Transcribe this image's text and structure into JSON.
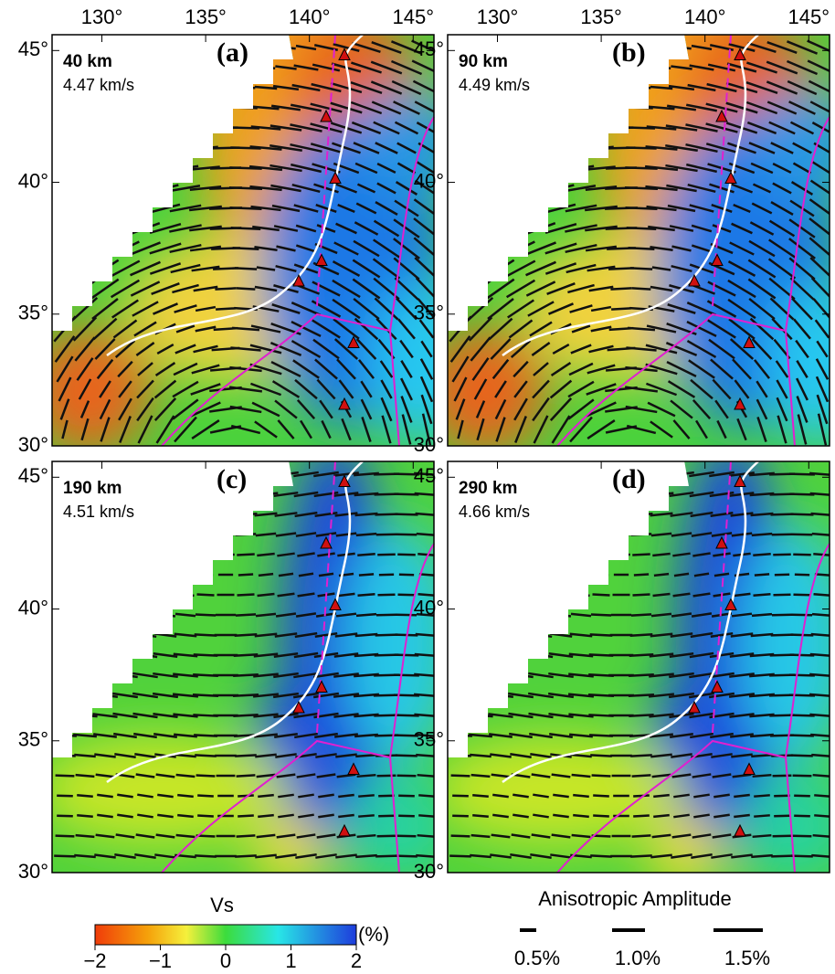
{
  "x_tick_labels": [
    "130°",
    "135°",
    "140°",
    "145°"
  ],
  "y_tick_labels": [
    "45°",
    "40°",
    "35°",
    "30°"
  ],
  "panels": [
    {
      "label": "(a)",
      "depth": "40 km",
      "velocity": "4.47 km/s"
    },
    {
      "label": "(b)",
      "depth": "90 km",
      "velocity": "4.49 km/s"
    },
    {
      "label": "(c)",
      "depth": "190 km",
      "velocity": "4.51 km/s"
    },
    {
      "label": "(d)",
      "depth": "290 km",
      "velocity": "4.66 km/s"
    }
  ],
  "colorbar": {
    "title": "Vs",
    "unit": "(%)",
    "ticks": [
      "−2",
      "−1",
      "0",
      "1",
      "2"
    ]
  },
  "amplitude_legend": {
    "title": "Anisotropic Amplitude",
    "items": [
      "0.5%",
      "1.0%",
      "1.5%"
    ]
  }
}
